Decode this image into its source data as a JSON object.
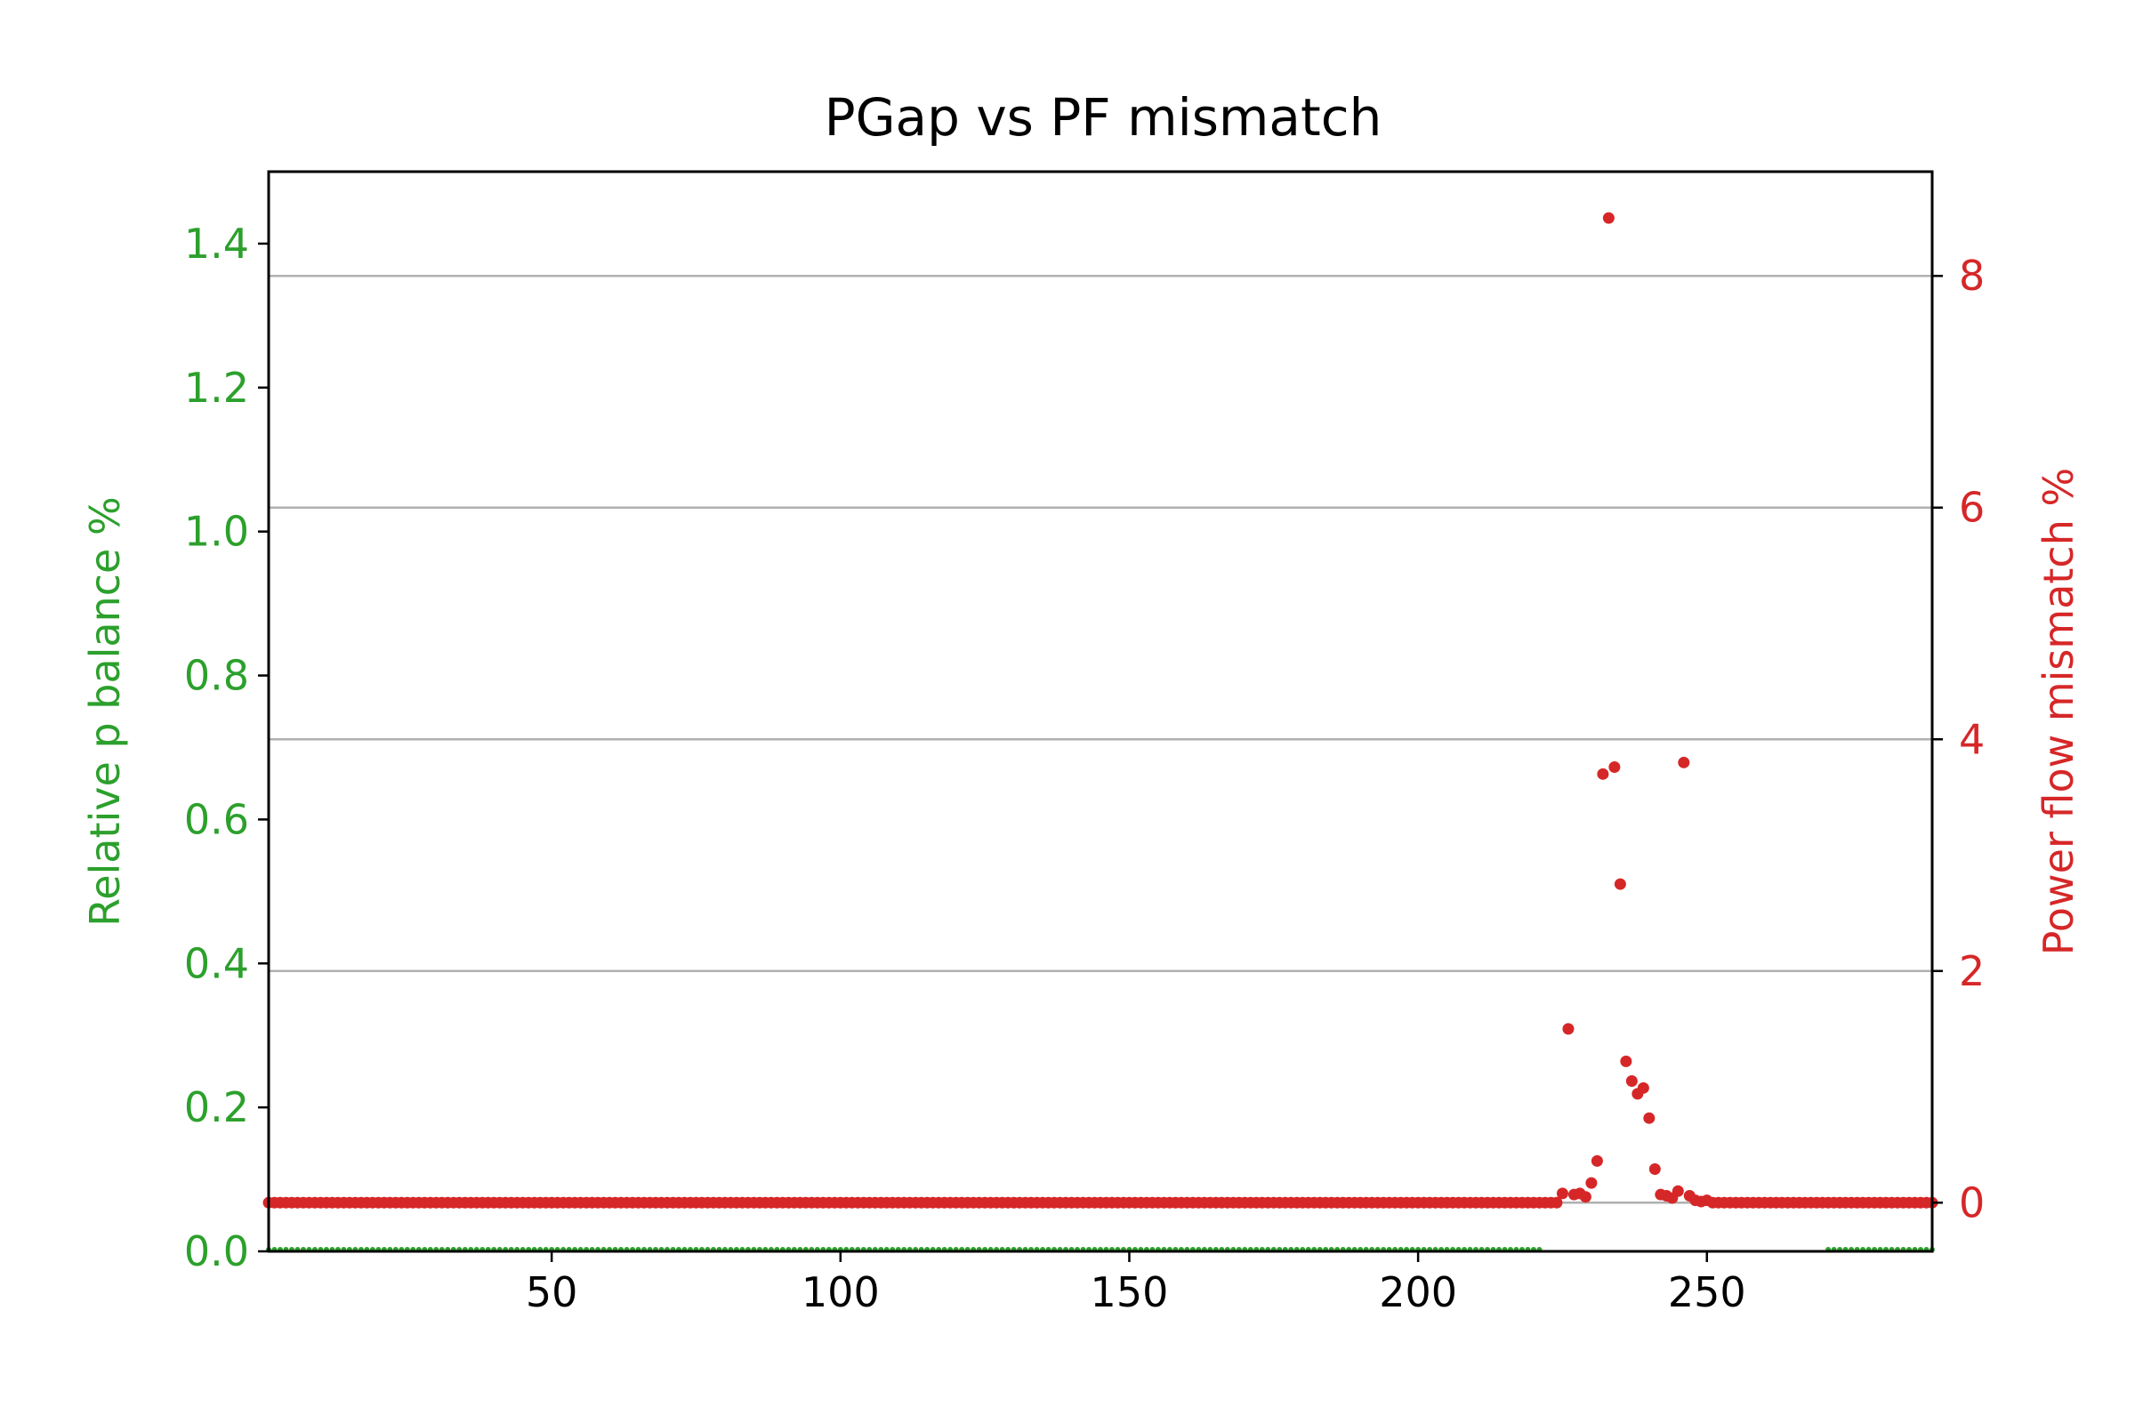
{
  "chart_data": {
    "type": "scatter",
    "title": "PGap vs PF mismatch",
    "xlabel": "",
    "x_ticks": [
      50,
      100,
      150,
      200,
      250
    ],
    "xlim": [
      1,
      289
    ],
    "grid": "horizontal, right axis",
    "left_axis": {
      "label": "Relative p balance %",
      "color": "#2ca02c",
      "ylim": [
        0.0,
        1.5
      ],
      "ticks": [
        0.0,
        0.2,
        0.4,
        0.6,
        0.8,
        1.0,
        1.2,
        1.4
      ],
      "tick_labels": [
        "0.0",
        "0.2",
        "0.4",
        "0.6",
        "0.8",
        "1.0",
        "1.2",
        "1.4"
      ]
    },
    "right_axis": {
      "label": "Power flow mismatch %",
      "color": "#d62728",
      "ylim": [
        -0.42,
        8.9
      ],
      "ticks": [
        0,
        2,
        4,
        6,
        8
      ],
      "tick_labels": [
        "0",
        "2",
        "4",
        "6",
        "8"
      ]
    },
    "series": [
      {
        "axis": "left",
        "color": "#2ca02c",
        "segments": [
          {
            "x_start": 1,
            "x_end": 221,
            "y": 0.0
          },
          {
            "x_start": 271,
            "x_end": 289,
            "y": 0.0
          }
        ]
      },
      {
        "axis": "right",
        "color": "#d62728",
        "baseline": {
          "x_start": 1,
          "x_end": 289,
          "y": 0.0
        },
        "points": [
          {
            "x": 225,
            "y": 0.08
          },
          {
            "x": 226,
            "y": 1.5
          },
          {
            "x": 227,
            "y": 0.07
          },
          {
            "x": 228,
            "y": 0.08
          },
          {
            "x": 229,
            "y": 0.05
          },
          {
            "x": 230,
            "y": 0.17
          },
          {
            "x": 231,
            "y": 0.36
          },
          {
            "x": 232,
            "y": 3.7
          },
          {
            "x": 233,
            "y": 8.5
          },
          {
            "x": 234,
            "y": 3.76
          },
          {
            "x": 235,
            "y": 2.75
          },
          {
            "x": 236,
            "y": 1.22
          },
          {
            "x": 237,
            "y": 1.05
          },
          {
            "x": 238,
            "y": 0.94
          },
          {
            "x": 239,
            "y": 0.99
          },
          {
            "x": 240,
            "y": 0.73
          },
          {
            "x": 241,
            "y": 0.29
          },
          {
            "x": 242,
            "y": 0.07
          },
          {
            "x": 243,
            "y": 0.06
          },
          {
            "x": 244,
            "y": 0.04
          },
          {
            "x": 245,
            "y": 0.1
          },
          {
            "x": 246,
            "y": 3.8
          },
          {
            "x": 247,
            "y": 0.06
          },
          {
            "x": 248,
            "y": 0.02
          },
          {
            "x": 249,
            "y": 0.01
          },
          {
            "x": 250,
            "y": 0.02
          }
        ]
      }
    ]
  }
}
